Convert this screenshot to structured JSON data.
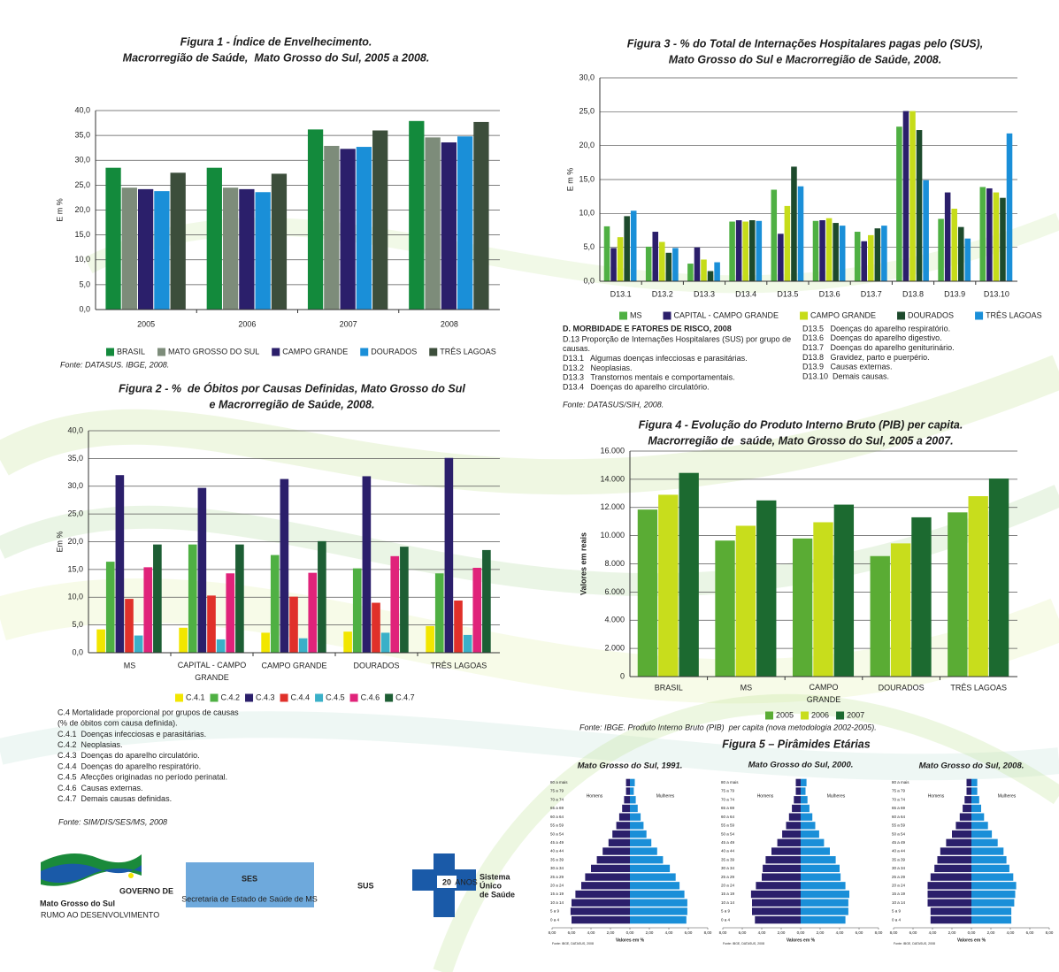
{
  "chart_data": [
    {
      "type": "bar",
      "title": [
        "Figura 1 - Índice de Envelhecimento.",
        "Macrorregião de Saúde,  Mato Grosso do Sul, 2005 a 2008."
      ],
      "ylabel": "E m %",
      "categories": [
        "2005",
        "2006",
        "2007",
        "2008"
      ],
      "series": [
        {
          "name": "BRASIL",
          "color": "#138a3c",
          "values": [
            28.5,
            28.5,
            36.2,
            37.9
          ]
        },
        {
          "name": "MATO GROSSO DO SUL",
          "color": "#7d8c7a",
          "values": [
            24.5,
            24.5,
            32.9,
            34.6
          ]
        },
        {
          "name": "CAMPO GRANDE",
          "color": "#2b1f6b",
          "values": [
            24.2,
            24.2,
            32.3,
            33.6
          ]
        },
        {
          "name": "DOURADOS",
          "color": "#1a8fd8",
          "values": [
            23.8,
            23.6,
            32.7,
            34.8
          ]
        },
        {
          "name": "TRÊS LAGOAS",
          "color": "#3c4e3b",
          "values": [
            27.5,
            27.3,
            36.0,
            37.7
          ]
        }
      ],
      "ylim": [
        0,
        40
      ],
      "yticks": [
        {
          "value": 0,
          "label": "0,0"
        },
        {
          "value": 5,
          "label": "5,0"
        },
        {
          "value": 10,
          "label": "10,0"
        },
        {
          "value": 15,
          "label": "15,0"
        },
        {
          "value": 20,
          "label": "20,0"
        },
        {
          "value": 25,
          "label": "25,0"
        },
        {
          "value": 30,
          "label": "30,0"
        },
        {
          "value": 35,
          "label": "35,0"
        },
        {
          "value": 40,
          "label": "40,0"
        }
      ],
      "grid": true,
      "source": "Fonte: DATASUS. IBGE, 2008."
    },
    {
      "type": "bar",
      "title": [
        "Figura 2 - %  de Óbitos por Causas Definidas, Mato Grosso do Sul",
        "e Macrorregião de Saúde, 2008."
      ],
      "ylabel": "Em %",
      "categories": [
        "MS",
        "CAPITAL - CAMPO GRANDE",
        "CAMPO GRANDE",
        "DOURADOS",
        "TRÊS LAGOAS"
      ],
      "series": [
        {
          "name": "C.4.1",
          "color": "#f2e600",
          "values": [
            4.2,
            4.5,
            3.6,
            3.8,
            4.8
          ]
        },
        {
          "name": "C.4.2",
          "color": "#4fb043",
          "values": [
            16.4,
            19.5,
            17.6,
            15.2,
            14.3
          ]
        },
        {
          "name": "C.4.3",
          "color": "#2b1f6b",
          "values": [
            32.0,
            29.7,
            31.3,
            31.8,
            35.1
          ]
        },
        {
          "name": "C.4.4",
          "color": "#e0302a",
          "values": [
            9.7,
            10.3,
            10.1,
            9.0,
            9.4
          ]
        },
        {
          "name": "C.4.5",
          "color": "#3ab0c8",
          "values": [
            3.1,
            2.4,
            2.6,
            3.6,
            3.2
          ]
        },
        {
          "name": "C.4.6",
          "color": "#e0237a",
          "values": [
            15.4,
            14.3,
            14.4,
            17.4,
            15.3
          ]
        },
        {
          "name": "C.4.7",
          "color": "#1d5e34",
          "values": [
            19.5,
            19.5,
            20.1,
            19.1,
            18.5
          ]
        }
      ],
      "ylim": [
        0,
        40
      ],
      "yticks": [
        {
          "value": 0,
          "label": "0,0"
        },
        {
          "value": 5,
          "label": "5,0"
        },
        {
          "value": 10,
          "label": "10,0"
        },
        {
          "value": 15,
          "label": "15,0"
        },
        {
          "value": 20,
          "label": "20,0"
        },
        {
          "value": 25,
          "label": "25,0"
        },
        {
          "value": 30,
          "label": "30,0"
        },
        {
          "value": 35,
          "label": "35,0"
        },
        {
          "value": 40,
          "label": "40,0"
        }
      ],
      "grid": true,
      "notes": [
        "C.4 Mortalidade proporcional por grupos de causas",
        "(% de óbitos com causa definida).",
        "C.4.1  Doenças infecciosas e parasitárias.",
        "C.4.2  Neoplasias.",
        "C.4.3  Doenças do aparelho circulatório.",
        "C.4.4  Doenças do aparelho respiratório.",
        "C.4.5  Afecções originadas no período perinatal.",
        "C.4.6  Causas externas.",
        "C.4.7  Demais causas definidas."
      ],
      "source": "Fonte: SIM/DIS/SES/MS, 2008"
    },
    {
      "type": "bar",
      "title": [
        "Figura 3 - % do Total de Internações Hospitalares pagas pelo (SUS),",
        "Mato Grosso do Sul e Macrorregião de Saúde, 2008."
      ],
      "ylabel": "E m %",
      "categories": [
        "D13.1",
        "D13.2",
        "D13.3",
        "D13.4",
        "D13.5",
        "D13.6",
        "D13.7",
        "D13.8",
        "D13.9",
        "D13.10"
      ],
      "series": [
        {
          "name": "MS",
          "color": "#4fb043",
          "values": [
            8.1,
            5.1,
            2.6,
            8.8,
            13.5,
            8.9,
            7.3,
            22.8,
            9.2,
            13.9
          ]
        },
        {
          "name": "CAPITAL - CAMPO GRANDE",
          "color": "#2b1f6b",
          "values": [
            4.9,
            7.3,
            5.0,
            9.0,
            7.0,
            9.0,
            5.9,
            25.1,
            13.1,
            13.7
          ]
        },
        {
          "name": "CAMPO GRANDE",
          "color": "#c6dc1a",
          "values": [
            6.5,
            5.8,
            3.2,
            8.8,
            11.1,
            9.3,
            6.8,
            25.1,
            10.7,
            13.1
          ]
        },
        {
          "name": "DOURADOS",
          "color": "#1d4a2c",
          "values": [
            9.6,
            4.2,
            1.5,
            9.0,
            16.9,
            8.6,
            7.8,
            22.3,
            8.0,
            12.3
          ]
        },
        {
          "name": "TRÊS LAGOAS",
          "color": "#1a8fd8",
          "values": [
            10.4,
            4.9,
            2.8,
            8.9,
            14.0,
            8.2,
            8.2,
            14.9,
            6.3,
            21.8
          ]
        }
      ],
      "ylim": [
        0,
        30
      ],
      "yticks": [
        {
          "value": 0,
          "label": "0,0"
        },
        {
          "value": 5,
          "label": "5,0"
        },
        {
          "value": 10,
          "label": "10,0"
        },
        {
          "value": 15,
          "label": "15,0"
        },
        {
          "value": 20,
          "label": "20,0"
        },
        {
          "value": 25,
          "label": "25,0"
        },
        {
          "value": 30,
          "label": "30,0"
        }
      ],
      "grid": true,
      "notes": {
        "heading": "D. MORBIDADE E FATORES DE RISCO, 2008",
        "left": [
          "D.13 Proporção de Internações Hospitalares (SUS) por grupo de",
          "causas.",
          "D13.1   Algumas doenças infecciosas e parasitárias.",
          "D13.2   Neoplasias.",
          "D13.3   Transtornos mentais e comportamentais.",
          "D13.4   Doenças do aparelho circulatório."
        ],
        "right": [
          "D13.5   Doenças do aparelho respiratório.",
          "D13.6   Doenças do aparelho digestivo.",
          "D13.7   Doenças do aparelho geniturinário.",
          "D13.8   Gravidez, parto e puerpério.",
          "D13.9   Causas externas.",
          "D13.10  Demais causas."
        ]
      },
      "source": "Fonte: DATASUS/SIH, 2008."
    },
    {
      "type": "bar",
      "title": [
        "Figura 4 - Evolução do Produto Interno Bruto (PIB) per capita.",
        "Macrorregião de  saúde, Mato Grosso do Sul, 2005 a 2007."
      ],
      "ylabel": "Valores em reais",
      "categories": [
        "BRASIL",
        "MS",
        "CAMPO GRANDE",
        "DOURADOS",
        "TRÊS LAGOAS"
      ],
      "series": [
        {
          "name": "2005",
          "color": "#5aac34",
          "values": [
            11850,
            9650,
            9800,
            8550,
            11650
          ]
        },
        {
          "name": "2006",
          "color": "#c8dd1c",
          "values": [
            12900,
            10700,
            10950,
            9450,
            12800
          ]
        },
        {
          "name": "2007",
          "color": "#1c6a30",
          "values": [
            14450,
            12500,
            12200,
            11300,
            14050
          ]
        }
      ],
      "ylim": [
        0,
        16000
      ],
      "yticks": [
        0,
        {
          "value": 2000,
          "label": "2.000"
        },
        {
          "value": 4000,
          "label": "4.000"
        },
        {
          "value": 6000,
          "label": "6.000"
        },
        {
          "value": 8000,
          "label": "8.000"
        },
        {
          "value": 10000,
          "label": "10.000"
        },
        {
          "value": 12000,
          "label": "12.000"
        },
        {
          "value": 14000,
          "label": "14.000"
        },
        {
          "value": 16000,
          "label": "16.000"
        }
      ],
      "grid": true,
      "source": "Fonte: IBGE. Produto Interno Bruto (PIB)  per capita (nova metodologia 2002-2005)."
    },
    {
      "type": "pyramid",
      "title": "Mato Grosso do Sul, 1991.",
      "categories": [
        "0 a 4",
        "5 a 9",
        "10 a 14",
        "15 a 19",
        "20 a 24",
        "25 a 29",
        "30 a 34",
        "35 a 39",
        "40 a 44",
        "45 a 49",
        "50 a 54",
        "55 a 59",
        "60 a 64",
        "65 a 69",
        "70 a 74",
        "75 a 79",
        "80 a mais"
      ],
      "series": [
        {
          "name": "Homens",
          "color": "#2b1f6b",
          "values": [
            6.0,
            6.1,
            6.0,
            5.6,
            5.0,
            4.6,
            4.0,
            3.4,
            2.8,
            2.2,
            1.8,
            1.4,
            1.1,
            0.8,
            0.6,
            0.4,
            0.4
          ]
        },
        {
          "name": "Mulheres",
          "color": "#1a8fd8",
          "values": [
            5.8,
            5.9,
            5.9,
            5.6,
            5.1,
            4.7,
            4.1,
            3.4,
            2.8,
            2.2,
            1.7,
            1.4,
            1.1,
            0.8,
            0.6,
            0.4,
            0.5
          ]
        }
      ],
      "xlim": [
        -8,
        8
      ],
      "xticks": [
        {
          "value": -8,
          "label": "8,00"
        },
        {
          "value": -6,
          "label": "6,00"
        },
        {
          "value": -4,
          "label": "4,00"
        },
        {
          "value": -2,
          "label": "2,00"
        },
        {
          "value": 0,
          "label": "0,00"
        },
        {
          "value": 2,
          "label": "2,00"
        },
        {
          "value": 4,
          "label": "4,00"
        },
        {
          "value": 6,
          "label": "6,00"
        },
        {
          "value": 8,
          "label": "8,00"
        }
      ],
      "xlabel": "Valores em %",
      "source": "Fonte: IBGE, DATASUS, 2008"
    },
    {
      "type": "pyramid",
      "title": "Mato Grosso do Sul, 2000.",
      "categories": [
        "0 a 4",
        "5 a 9",
        "10 a 14",
        "15 a 19",
        "20 a 24",
        "25 a 29",
        "30 a 34",
        "35 a 39",
        "40 a 44",
        "45 a 49",
        "50 a 54",
        "55 a 59",
        "60 a 64",
        "65 a 69",
        "70 a 74",
        "75 a 79",
        "80 a mais"
      ],
      "series": [
        {
          "name": "Homens",
          "color": "#2b1f6b",
          "values": [
            4.7,
            5.0,
            5.0,
            5.1,
            4.6,
            4.0,
            3.9,
            3.6,
            3.0,
            2.4,
            1.9,
            1.5,
            1.2,
            0.9,
            0.7,
            0.5,
            0.5
          ]
        },
        {
          "name": "Mulheres",
          "color": "#1a8fd8",
          "values": [
            4.6,
            4.9,
            4.9,
            5.0,
            4.6,
            4.1,
            4.0,
            3.6,
            3.0,
            2.4,
            1.9,
            1.5,
            1.2,
            0.9,
            0.7,
            0.5,
            0.6
          ]
        }
      ],
      "xlim": [
        -8,
        8
      ],
      "xticks": [
        {
          "value": -8,
          "label": "8,00"
        },
        {
          "value": -6,
          "label": "6,00"
        },
        {
          "value": -4,
          "label": "4,00"
        },
        {
          "value": -2,
          "label": "2,00"
        },
        {
          "value": 0,
          "label": "0,00"
        },
        {
          "value": 2,
          "label": "2,00"
        },
        {
          "value": 4,
          "label": "4,00"
        },
        {
          "value": 6,
          "label": "6,00"
        },
        {
          "value": 8,
          "label": "8,00"
        }
      ],
      "xlabel": "Valores em %",
      "source": "Fonte: IBGE, DATASUS, 2008"
    },
    {
      "type": "pyramid",
      "title": "Mato Grosso do Sul, 2008.",
      "categories": [
        "0 a 4",
        "5 a 9",
        "10 a 14",
        "15 a 19",
        "20 a 24",
        "25 a 29",
        "30 a 34",
        "35 a 39",
        "40 a 44",
        "45 a 49",
        "50 a 54",
        "55 a 59",
        "60 a 64",
        "65 a 69",
        "70 a 74",
        "75 a 79",
        "80 a mais"
      ],
      "series": [
        {
          "name": "Homens",
          "color": "#2b1f6b",
          "values": [
            4.2,
            4.2,
            4.5,
            4.5,
            4.5,
            4.2,
            3.8,
            3.5,
            3.2,
            2.6,
            2.0,
            1.6,
            1.2,
            0.9,
            0.7,
            0.5,
            0.5
          ]
        },
        {
          "name": "Mulheres",
          "color": "#1a8fd8",
          "values": [
            4.1,
            4.1,
            4.4,
            4.5,
            4.6,
            4.3,
            3.9,
            3.6,
            3.3,
            2.7,
            2.1,
            1.7,
            1.3,
            1.0,
            0.8,
            0.6,
            0.6
          ]
        }
      ],
      "xlim": [
        -8,
        8
      ],
      "xticks": [
        {
          "value": -8,
          "label": "8,00"
        },
        {
          "value": -6,
          "label": "6,00"
        },
        {
          "value": -4,
          "label": "4,00"
        },
        {
          "value": -2,
          "label": "2,00"
        },
        {
          "value": 0,
          "label": "0,00"
        },
        {
          "value": 2,
          "label": "2,00"
        },
        {
          "value": 4,
          "label": "4,00"
        },
        {
          "value": 6,
          "label": "6,00"
        },
        {
          "value": 8,
          "label": "8,00"
        }
      ],
      "xlabel": "Valores em %",
      "source": "Fonte: IBGE, DATASUS, 2008"
    }
  ],
  "section_title": "Figura 5 – Pirâmides Etárias",
  "logos": {
    "gov_top": "GOVERNO DE",
    "gov_name": "Mato Grosso do Sul",
    "gov_motto": "RUMO AO DESENVOLVIMENTO",
    "ses": "SES",
    "ses_name": "Secretaria de Estado de Saúde de MS",
    "sus": "SUS",
    "sus_years": "20",
    "sus_anos": "ANOS",
    "sus_line1": "Sistema",
    "sus_line2": "Único",
    "sus_line3": "de Saúde"
  }
}
